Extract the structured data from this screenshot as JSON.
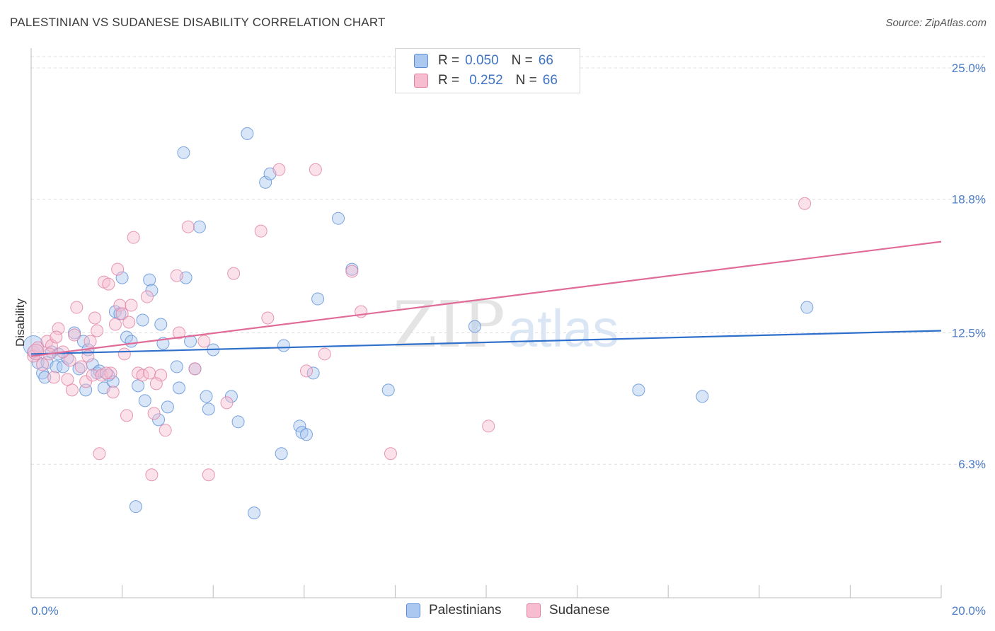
{
  "header": {
    "title": "PALESTINIAN VS SUDANESE DISABILITY CORRELATION CHART",
    "source": "Source: ZipAtlas.com"
  },
  "watermark": {
    "zip": "ZIP",
    "atlas": "atlas"
  },
  "legend": {
    "rows": [
      {
        "r_label": "R =",
        "r_value": "0.050",
        "n_label": "N =",
        "n_value": "66"
      },
      {
        "r_label": "R =",
        "r_value": "0.252",
        "n_label": "N =",
        "n_value": "66"
      }
    ]
  },
  "bottom_legend": {
    "palestinians": "Palestinians",
    "sudanese": "Sudanese"
  },
  "colors": {
    "blue_fill": "#aac8f0",
    "blue_stroke": "#5b8ed6",
    "blue_line": "#2e6fcc",
    "pink_fill": "#f7bcd0",
    "pink_stroke": "#e07fa3",
    "pink_line": "#e06b97",
    "grid": "#dddddd",
    "axis_text": "#4a7cc9"
  },
  "chart_data": {
    "type": "scatter",
    "title": "PALESTINIAN VS SUDANESE DISABILITY CORRELATION CHART",
    "xlabel": "",
    "ylabel": "Disability",
    "xlim": [
      0,
      20
    ],
    "ylim": [
      0,
      25.8
    ],
    "x_tick_labels": [
      "0.0%",
      "20.0%"
    ],
    "y_ticks": [
      6.3,
      12.5,
      18.8,
      25.0
    ],
    "y_tick_labels": [
      "6.3%",
      "12.5%",
      "18.8%",
      "25.0%"
    ],
    "series": [
      {
        "name": "Palestinians",
        "r": 0.05,
        "n": 66,
        "trend": {
          "x": [
            0,
            20
          ],
          "y": [
            11.5,
            12.6
          ]
        },
        "points": [
          [
            0.05,
            11.6
          ],
          [
            0.15,
            11.1
          ],
          [
            0.25,
            10.6
          ],
          [
            0.35,
            11.1
          ],
          [
            0.45,
            11.6
          ],
          [
            0.55,
            10.9
          ],
          [
            0.7,
            10.9
          ],
          [
            0.8,
            11.3
          ],
          [
            0.95,
            12.5
          ],
          [
            1.05,
            10.8
          ],
          [
            1.15,
            12.1
          ],
          [
            1.25,
            11.7
          ],
          [
            1.35,
            11.0
          ],
          [
            1.45,
            10.6
          ],
          [
            1.5,
            10.7
          ],
          [
            1.6,
            9.9
          ],
          [
            1.8,
            10.2
          ],
          [
            1.85,
            13.5
          ],
          [
            1.95,
            13.4
          ],
          [
            2.0,
            15.1
          ],
          [
            2.1,
            12.3
          ],
          [
            2.2,
            12.1
          ],
          [
            2.35,
            10.0
          ],
          [
            2.45,
            13.1
          ],
          [
            2.5,
            9.3
          ],
          [
            2.6,
            15.0
          ],
          [
            2.65,
            14.5
          ],
          [
            2.8,
            8.4
          ],
          [
            2.85,
            12.9
          ],
          [
            2.9,
            12.0
          ],
          [
            3.0,
            9.0
          ],
          [
            3.2,
            10.9
          ],
          [
            3.25,
            9.9
          ],
          [
            3.35,
            21.0
          ],
          [
            3.4,
            15.1
          ],
          [
            3.5,
            12.1
          ],
          [
            3.6,
            10.8
          ],
          [
            3.7,
            17.5
          ],
          [
            3.85,
            9.5
          ],
          [
            3.9,
            8.9
          ],
          [
            4.0,
            11.7
          ],
          [
            4.4,
            9.5
          ],
          [
            4.55,
            8.3
          ],
          [
            4.75,
            21.9
          ],
          [
            4.9,
            4.0
          ],
          [
            5.15,
            19.6
          ],
          [
            5.25,
            20.0
          ],
          [
            5.5,
            6.8
          ],
          [
            5.55,
            11.9
          ],
          [
            5.9,
            8.1
          ],
          [
            5.95,
            7.8
          ],
          [
            6.05,
            7.7
          ],
          [
            6.2,
            10.6
          ],
          [
            6.3,
            14.1
          ],
          [
            6.75,
            17.9
          ],
          [
            7.05,
            15.5
          ],
          [
            7.85,
            9.8
          ],
          [
            9.75,
            12.8
          ],
          [
            13.35,
            9.8
          ],
          [
            14.75,
            9.5
          ],
          [
            17.05,
            13.7
          ],
          [
            2.3,
            4.3
          ],
          [
            1.2,
            9.8
          ],
          [
            0.3,
            10.4
          ],
          [
            0.6,
            11.5
          ],
          [
            1.7,
            10.5
          ]
        ]
      },
      {
        "name": "Sudanese",
        "r": 0.252,
        "n": 66,
        "trend": {
          "x": [
            0,
            20
          ],
          "y": [
            11.4,
            16.8
          ]
        },
        "points": [
          [
            0.05,
            11.4
          ],
          [
            0.15,
            11.8
          ],
          [
            0.25,
            11.0
          ],
          [
            0.35,
            12.1
          ],
          [
            0.45,
            11.9
          ],
          [
            0.5,
            10.4
          ],
          [
            0.6,
            12.7
          ],
          [
            0.7,
            11.6
          ],
          [
            0.85,
            11.2
          ],
          [
            0.9,
            9.8
          ],
          [
            0.95,
            12.4
          ],
          [
            1.0,
            13.7
          ],
          [
            1.1,
            10.9
          ],
          [
            1.2,
            10.2
          ],
          [
            1.3,
            12.1
          ],
          [
            1.35,
            10.5
          ],
          [
            1.4,
            13.2
          ],
          [
            1.45,
            12.6
          ],
          [
            1.5,
            6.8
          ],
          [
            1.55,
            10.5
          ],
          [
            1.6,
            14.9
          ],
          [
            1.7,
            14.8
          ],
          [
            1.75,
            10.6
          ],
          [
            1.8,
            9.7
          ],
          [
            1.9,
            15.5
          ],
          [
            1.95,
            13.8
          ],
          [
            2.0,
            13.4
          ],
          [
            2.05,
            11.5
          ],
          [
            2.1,
            8.6
          ],
          [
            2.15,
            13.0
          ],
          [
            2.2,
            13.8
          ],
          [
            2.25,
            17.0
          ],
          [
            2.35,
            10.6
          ],
          [
            2.45,
            10.5
          ],
          [
            2.55,
            14.2
          ],
          [
            2.6,
            10.6
          ],
          [
            2.65,
            5.8
          ],
          [
            2.7,
            8.7
          ],
          [
            2.85,
            10.5
          ],
          [
            2.95,
            7.9
          ],
          [
            3.2,
            15.2
          ],
          [
            3.25,
            12.5
          ],
          [
            3.45,
            17.5
          ],
          [
            3.6,
            10.8
          ],
          [
            3.8,
            12.1
          ],
          [
            3.9,
            5.8
          ],
          [
            4.3,
            9.2
          ],
          [
            4.45,
            15.3
          ],
          [
            5.05,
            17.3
          ],
          [
            5.2,
            13.2
          ],
          [
            5.45,
            20.2
          ],
          [
            6.05,
            10.7
          ],
          [
            6.25,
            20.2
          ],
          [
            6.45,
            11.5
          ],
          [
            7.05,
            15.4
          ],
          [
            7.25,
            13.5
          ],
          [
            7.9,
            6.8
          ],
          [
            10.05,
            8.1
          ],
          [
            0.8,
            10.3
          ],
          [
            1.65,
            10.6
          ],
          [
            0.4,
            11.5
          ],
          [
            1.25,
            11.4
          ],
          [
            2.75,
            10.1
          ],
          [
            0.55,
            12.3
          ],
          [
            1.85,
            12.9
          ],
          [
            17.0,
            18.6
          ]
        ]
      }
    ]
  }
}
